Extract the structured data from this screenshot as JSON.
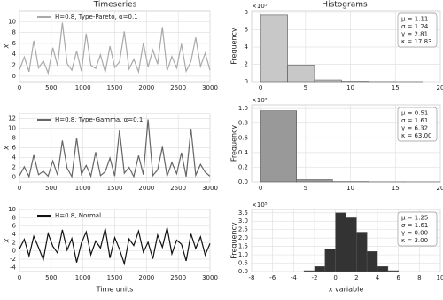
{
  "titles": [
    "Timeseries",
    "Histograms"
  ],
  "chart_data": [
    {
      "type": "line",
      "ylabel": "x",
      "grid": true,
      "legend": "upper left",
      "x": [
        0,
        75,
        150,
        225,
        300,
        375,
        450,
        525,
        600,
        675,
        750,
        825,
        900,
        975,
        1050,
        1125,
        1200,
        1275,
        1350,
        1425,
        1500,
        1575,
        1650,
        1725,
        1800,
        1875,
        1950,
        2025,
        2100,
        2175,
        2250,
        2325,
        2400,
        2475,
        2550,
        2625,
        2700,
        2775,
        2850,
        2925,
        3000
      ],
      "series": [
        {
          "name": "H=0.8, Type-Pareto, α=0.1",
          "color": "#aaaaaa",
          "values": [
            1.2,
            3.5,
            0.8,
            6.5,
            1.5,
            2.8,
            0.6,
            5.2,
            1.9,
            9.8,
            2.3,
            1.1,
            4.6,
            0.9,
            7.8,
            2.0,
            1.4,
            3.9,
            0.7,
            5.5,
            1.6,
            2.6,
            8.2,
            1.3,
            3.1,
            0.8,
            6.1,
            1.7,
            4.8,
            2.2,
            9.0,
            1.0,
            3.6,
            1.5,
            5.9,
            0.9,
            2.7,
            7.1,
            1.8,
            4.2,
            1.1
          ]
        }
      ],
      "xlim": [
        0,
        3000
      ],
      "xticks": [
        0,
        500,
        1000,
        1500,
        2000,
        2500,
        3000
      ],
      "ylim": [
        -1,
        12
      ],
      "yticks": [
        0,
        2,
        4,
        6,
        8,
        10
      ]
    },
    {
      "type": "histogram",
      "ylabel": "Frequency",
      "grid": true,
      "yscale_label": "×10⁵",
      "color": "#c8c8c8",
      "bins": [
        0,
        3,
        6,
        9,
        12,
        15,
        18
      ],
      "values": [
        7.7,
        1.9,
        0.2,
        0.04,
        0.01,
        0.005
      ],
      "annotation": [
        "μ = 1.11",
        "σ = 1.24",
        "γ = 2.81",
        "κ = 17.83"
      ],
      "xlim": [
        -1,
        20
      ],
      "xticks": [
        0,
        5,
        10,
        15,
        20
      ],
      "ylim": [
        0,
        8.2
      ],
      "yticks": [
        0,
        2,
        4,
        6,
        8
      ]
    },
    {
      "type": "line",
      "ylabel": "x",
      "grid": true,
      "legend": "upper left",
      "x": [
        0,
        75,
        150,
        225,
        300,
        375,
        450,
        525,
        600,
        675,
        750,
        825,
        900,
        975,
        1050,
        1125,
        1200,
        1275,
        1350,
        1425,
        1500,
        1575,
        1650,
        1725,
        1800,
        1875,
        1950,
        2025,
        2100,
        2175,
        2250,
        2325,
        2400,
        2475,
        2550,
        2625,
        2700,
        2775,
        2850,
        2925,
        3000
      ],
      "series": [
        {
          "name": "H=0.8, Type-Gamma, α=0.1",
          "color": "#666666",
          "values": [
            0.3,
            2.1,
            0.1,
            4.5,
            0.5,
            1.2,
            0.2,
            3.3,
            0.4,
            7.5,
            1.8,
            0.1,
            8.0,
            0.6,
            2.4,
            0.2,
            5.1,
            0.3,
            1.1,
            3.9,
            0.2,
            9.6,
            0.8,
            2.0,
            0.1,
            4.4,
            0.5,
            11.8,
            0.3,
            1.5,
            6.2,
            0.2,
            3.0,
            0.7,
            5.0,
            0.1,
            9.9,
            0.4,
            2.6,
            1.0,
            0.2
          ]
        }
      ],
      "xlim": [
        0,
        3000
      ],
      "xticks": [
        0,
        500,
        1000,
        1500,
        2000,
        2500,
        3000
      ],
      "ylim": [
        -1,
        13
      ],
      "yticks": [
        0,
        2,
        4,
        6,
        8,
        10,
        12
      ]
    },
    {
      "type": "histogram",
      "ylabel": "Frequency",
      "grid": true,
      "yscale_label": "×10⁶",
      "color": "#999999",
      "bins": [
        0,
        4,
        8,
        12,
        16,
        20
      ],
      "values": [
        0.97,
        0.03,
        0.004,
        0.001,
        0.0005
      ],
      "annotation": [
        "μ = 0.51",
        "σ = 1.61",
        "γ = 6.32",
        "κ = 63.00"
      ],
      "xlim": [
        -1,
        20
      ],
      "xticks": [
        0,
        5,
        10,
        15,
        20
      ],
      "ylim": [
        0,
        1.05
      ],
      "yticks": [
        {
          "value": 0,
          "label": "0.0"
        },
        {
          "value": 0.2,
          "label": "0.2"
        },
        {
          "value": 0.4,
          "label": "0.4"
        },
        {
          "value": 0.6,
          "label": "0.6"
        },
        {
          "value": 0.8,
          "label": "0.8"
        },
        {
          "value": 1,
          "label": "1.0"
        }
      ]
    },
    {
      "type": "line",
      "ylabel": "x",
      "xlabel": "Time units",
      "grid": true,
      "legend": "upper left",
      "x": [
        0,
        75,
        150,
        225,
        300,
        375,
        450,
        525,
        600,
        675,
        750,
        825,
        900,
        975,
        1050,
        1125,
        1200,
        1275,
        1350,
        1425,
        1500,
        1575,
        1650,
        1725,
        1800,
        1875,
        1950,
        2025,
        2100,
        2175,
        2250,
        2325,
        2400,
        2475,
        2550,
        2625,
        2700,
        2775,
        2850,
        2925,
        3000
      ],
      "series": [
        {
          "name": "H=0.8, Normal",
          "color": "#111111",
          "values": [
            0.5,
            2.8,
            -1.2,
            3.5,
            0.8,
            -2.1,
            4.2,
            1.1,
            -0.5,
            5.1,
            0.2,
            3.0,
            -2.8,
            1.9,
            4.6,
            -0.9,
            2.4,
            0.7,
            5.4,
            -1.7,
            3.2,
            0.4,
            -3.1,
            2.9,
            1.3,
            4.8,
            -0.3,
            2.1,
            -1.9,
            3.8,
            0.9,
            5.6,
            -0.7,
            2.6,
            1.6,
            -2.4,
            4.1,
            0.6,
            3.4,
            -1.0,
            1.8
          ]
        }
      ],
      "xlim": [
        0,
        3000
      ],
      "xticks": [
        0,
        500,
        1000,
        1500,
        2000,
        2500,
        3000
      ],
      "ylim": [
        -5,
        10
      ],
      "yticks": [
        -4,
        -2,
        0,
        2,
        4,
        6,
        8,
        10
      ]
    },
    {
      "type": "histogram",
      "ylabel": "Frequency",
      "xlabel": "x variable",
      "grid": true,
      "yscale_label": "×10⁵",
      "color": "#333333",
      "bins": [
        -3,
        -2,
        -1,
        0,
        1,
        2,
        3,
        4,
        5,
        6
      ],
      "values": [
        0.05,
        0.3,
        1.35,
        3.5,
        3.2,
        2.35,
        1.2,
        0.3,
        0.05
      ],
      "annotation": [
        "μ = 1.25",
        "σ = 1.61",
        "γ = 0.00",
        "κ = 3.00"
      ],
      "xlim": [
        -8,
        10
      ],
      "xticks": [
        -8,
        -6,
        -4,
        -2,
        0,
        2,
        4,
        6,
        8,
        10
      ],
      "ylim": [
        0,
        3.7
      ],
      "yticks": [
        {
          "value": 0,
          "label": "0.0"
        },
        {
          "value": 0.5,
          "label": "0.5"
        },
        {
          "value": 1,
          "label": "1.0"
        },
        {
          "value": 1.5,
          "label": "1.5"
        },
        {
          "value": 2,
          "label": "2.0"
        },
        {
          "value": 2.5,
          "label": "2.5"
        },
        {
          "value": 3,
          "label": "3.0"
        },
        {
          "value": 3.5,
          "label": "3.5"
        }
      ]
    }
  ]
}
